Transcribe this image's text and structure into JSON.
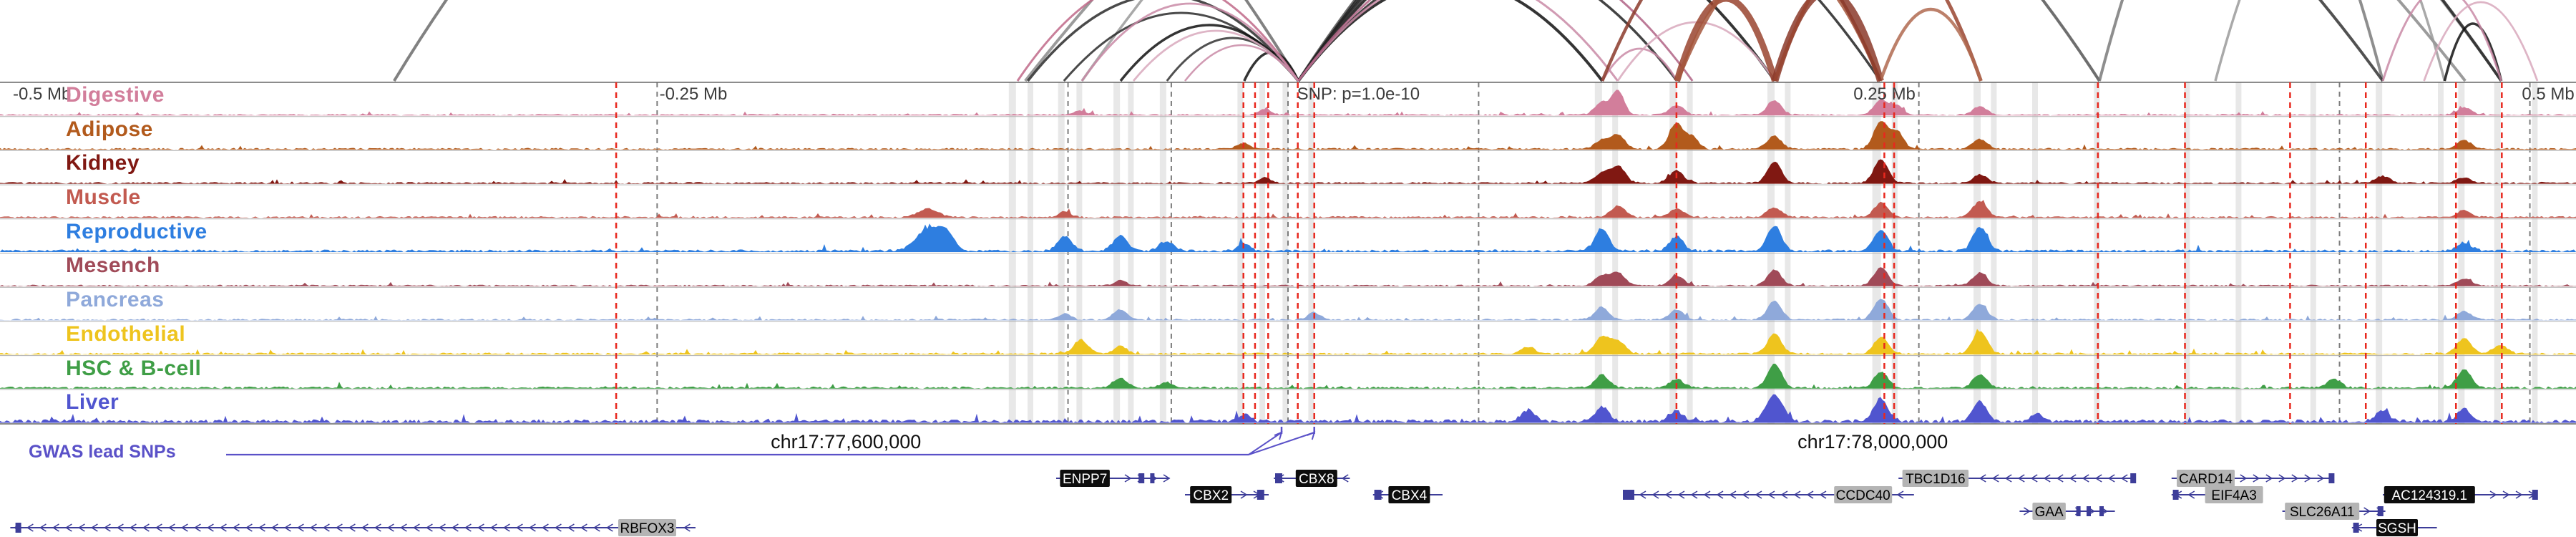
{
  "gwas": {
    "label": "GWAS lead SNPs",
    "color": "#5a51c8",
    "snp_targets_x": [
      0.4975,
      0.5102
    ]
  },
  "chart_data": {
    "type": "area",
    "title": "",
    "description": "Multi-tissue epigenomic signal tracks with chromatin interaction arcs around a GWAS lead SNP on chr17",
    "x_axis": {
      "ticks": [
        "-0.5 Mb",
        "-0.25 Mb",
        "SNP: p=1.0e-10",
        "0.25 Mb",
        "0.5 Mb"
      ],
      "tick_x": [
        0.005,
        0.256,
        0.5035,
        0.7195,
        0.979
      ],
      "coordinates": [
        "chr17:77,600,000",
        "chr17:78,000,000"
      ],
      "coordinate_x": [
        0.3284,
        0.727
      ]
    },
    "snp": {
      "label": "SNP: p=1.0e-10",
      "p_value": "1.0e-10",
      "x": 0.5038
    },
    "series": [
      {
        "name": "Digestive",
        "color": "#d27e9b",
        "noise": 0.7,
        "peaks": [
          [
            0.6218,
            0.45,
            7
          ],
          [
            0.6281,
            0.85,
            6
          ],
          [
            0.6508,
            0.35,
            7
          ],
          [
            0.6888,
            0.5,
            7
          ],
          [
            0.7302,
            0.55,
            7
          ],
          [
            0.7366,
            0.3,
            6
          ],
          [
            0.7686,
            0.3,
            7
          ],
          [
            0.491,
            0.2,
            6
          ],
          [
            0.9566,
            0.25,
            7
          ],
          [
            0.4196,
            0.15,
            6
          ]
        ]
      },
      {
        "name": "Adipose",
        "color": "#b25a1c",
        "noise": 0.8,
        "peaks": [
          [
            0.6218,
            0.3,
            7
          ],
          [
            0.6281,
            0.5,
            7
          ],
          [
            0.6508,
            0.9,
            7
          ],
          [
            0.657,
            0.4,
            6
          ],
          [
            0.6888,
            0.45,
            7
          ],
          [
            0.7302,
            1.0,
            7
          ],
          [
            0.7366,
            0.6,
            6
          ],
          [
            0.7686,
            0.35,
            7
          ],
          [
            0.9566,
            0.3,
            7
          ],
          [
            0.4827,
            0.2,
            6
          ]
        ]
      },
      {
        "name": "Kidney",
        "color": "#801812",
        "noise": 0.8,
        "peaks": [
          [
            0.6218,
            0.35,
            7
          ],
          [
            0.6281,
            0.6,
            7
          ],
          [
            0.6508,
            0.45,
            7
          ],
          [
            0.6888,
            0.75,
            7
          ],
          [
            0.7302,
            0.85,
            7
          ],
          [
            0.7686,
            0.3,
            7
          ],
          [
            0.9248,
            0.25,
            7
          ],
          [
            0.491,
            0.2,
            6
          ],
          [
            0.9566,
            0.2,
            7
          ]
        ]
      },
      {
        "name": "Muscle",
        "color": "#c25a50",
        "noise": 0.8,
        "peaks": [
          [
            0.3603,
            0.3,
            10
          ],
          [
            0.6281,
            0.4,
            7
          ],
          [
            0.6508,
            0.3,
            7
          ],
          [
            0.6888,
            0.35,
            7
          ],
          [
            0.7302,
            0.5,
            7
          ],
          [
            0.7686,
            0.55,
            7
          ],
          [
            0.9566,
            0.25,
            7
          ],
          [
            0.4133,
            0.2,
            6
          ]
        ]
      },
      {
        "name": "Reproductive",
        "color": "#2e7ee0",
        "noise": 1.2,
        "peaks": [
          [
            0.3603,
            0.75,
            12
          ],
          [
            0.3672,
            0.55,
            8
          ],
          [
            0.4133,
            0.5,
            7
          ],
          [
            0.4349,
            0.55,
            7
          ],
          [
            0.4528,
            0.35,
            7
          ],
          [
            0.6218,
            0.8,
            7
          ],
          [
            0.6508,
            0.5,
            7
          ],
          [
            0.6888,
            0.9,
            7
          ],
          [
            0.7302,
            0.75,
            7
          ],
          [
            0.7686,
            0.85,
            7
          ],
          [
            0.4827,
            0.25,
            6
          ],
          [
            0.9566,
            0.3,
            7
          ]
        ]
      },
      {
        "name": "Mesench",
        "color": "#a04a58",
        "noise": 0.7,
        "peaks": [
          [
            0.6218,
            0.35,
            7
          ],
          [
            0.6281,
            0.45,
            7
          ],
          [
            0.6508,
            0.35,
            7
          ],
          [
            0.6888,
            0.55,
            7
          ],
          [
            0.7302,
            0.65,
            7
          ],
          [
            0.7686,
            0.45,
            7
          ],
          [
            0.9566,
            0.25,
            7
          ],
          [
            0.4349,
            0.2,
            6
          ]
        ]
      },
      {
        "name": "Pancreas",
        "color": "#8fa9da",
        "noise": 0.8,
        "peaks": [
          [
            0.4349,
            0.35,
            7
          ],
          [
            0.6218,
            0.45,
            7
          ],
          [
            0.6508,
            0.35,
            7
          ],
          [
            0.6888,
            0.65,
            7
          ],
          [
            0.7302,
            0.75,
            7
          ],
          [
            0.7686,
            0.55,
            7
          ],
          [
            0.5102,
            0.25,
            6
          ],
          [
            0.9566,
            0.3,
            7
          ],
          [
            0.4133,
            0.2,
            6
          ]
        ]
      },
      {
        "name": "Endothelial",
        "color": "#eec41e",
        "noise": 0.9,
        "peaks": [
          [
            0.4196,
            0.5,
            7
          ],
          [
            0.6218,
            0.6,
            7
          ],
          [
            0.6281,
            0.45,
            7
          ],
          [
            0.6888,
            0.7,
            7
          ],
          [
            0.7302,
            0.6,
            7
          ],
          [
            0.7686,
            0.8,
            7
          ],
          [
            0.9566,
            0.55,
            7
          ],
          [
            0.5931,
            0.25,
            7
          ],
          [
            0.4349,
            0.3,
            6
          ],
          [
            0.9706,
            0.3,
            7
          ]
        ]
      },
      {
        "name": "HSC & B-cell",
        "color": "#3f9e46",
        "noise": 1.0,
        "peaks": [
          [
            0.4349,
            0.35,
            7
          ],
          [
            0.6218,
            0.45,
            7
          ],
          [
            0.6888,
            0.85,
            7
          ],
          [
            0.7302,
            0.55,
            7
          ],
          [
            0.7686,
            0.45,
            7
          ],
          [
            0.906,
            0.3,
            7
          ],
          [
            0.9566,
            0.65,
            7
          ],
          [
            0.4528,
            0.2,
            6
          ],
          [
            0.6508,
            0.3,
            7
          ]
        ]
      },
      {
        "name": "Liver",
        "color": "#5055cf",
        "noise": 1.6,
        "peaks": [
          [
            0.5931,
            0.4,
            7
          ],
          [
            0.6218,
            0.5,
            7
          ],
          [
            0.6888,
            0.95,
            8
          ],
          [
            0.7302,
            0.8,
            7
          ],
          [
            0.7686,
            0.7,
            7
          ],
          [
            0.9248,
            0.35,
            7
          ],
          [
            0.9566,
            0.45,
            7
          ],
          [
            0.4827,
            0.25,
            6
          ],
          [
            0.6508,
            0.35,
            7
          ],
          [
            0.7909,
            0.3,
            6
          ]
        ]
      }
    ],
    "overlays": {
      "red_lines": [
        0.2392,
        0.4827,
        0.4872,
        0.4923,
        0.5038,
        0.5102,
        0.6508,
        0.7315,
        0.7353,
        0.8144,
        0.8482,
        0.889,
        0.9184,
        0.9534,
        0.9712
      ],
      "gray_lines": [
        0.2551,
        0.4146,
        0.4547,
        0.5,
        0.574,
        0.7449,
        0.9082,
        0.9821
      ],
      "bands": [
        [
          0.393,
          10
        ],
        [
          0.4,
          8
        ],
        [
          0.412,
          9
        ],
        [
          0.419,
          8
        ],
        [
          0.4335,
          9
        ],
        [
          0.439,
          8
        ],
        [
          0.4515,
          9
        ],
        [
          0.4815,
          8
        ],
        [
          0.49,
          8
        ],
        [
          0.499,
          8
        ],
        [
          0.509,
          8
        ],
        [
          0.6205,
          10
        ],
        [
          0.627,
          8
        ],
        [
          0.6495,
          10
        ],
        [
          0.656,
          8
        ],
        [
          0.6875,
          10
        ],
        [
          0.694,
          8
        ],
        [
          0.7285,
          12
        ],
        [
          0.7355,
          8
        ],
        [
          0.7675,
          10
        ],
        [
          0.774,
          8
        ],
        [
          0.79,
          8
        ],
        [
          0.814,
          8
        ],
        [
          0.849,
          8
        ],
        [
          0.869,
          8
        ],
        [
          0.898,
          8
        ],
        [
          0.9235,
          9
        ],
        [
          0.9475,
          8
        ],
        [
          0.9555,
          9
        ],
        [
          0.9695,
          9
        ],
        [
          0.984,
          8
        ]
      ]
    },
    "arcs": [
      [
        0.153,
        0.504,
        520,
        "#6b6b6b",
        4
      ],
      [
        0.398,
        0.957,
        640,
        "#8a8a8a",
        4
      ],
      [
        0.42,
        0.971,
        700,
        "#9a9a9a",
        3.5
      ],
      [
        0.504,
        0.815,
        430,
        "#555555",
        4
      ],
      [
        0.86,
        0.949,
        300,
        "#9a9a9a",
        3.5
      ],
      [
        0.815,
        0.925,
        380,
        "#7a7a7a",
        4
      ],
      [
        0.399,
        0.504,
        120,
        "#2a2a2a",
        3.5
      ],
      [
        0.413,
        0.504,
        95,
        "#2a2a2a",
        3
      ],
      [
        0.435,
        0.504,
        78,
        "#111111",
        3.5
      ],
      [
        0.453,
        0.504,
        60,
        "#333333",
        3
      ],
      [
        0.483,
        0.504,
        40,
        "#111111",
        3.5
      ],
      [
        0.504,
        0.622,
        140,
        "#111111",
        4
      ],
      [
        0.504,
        0.651,
        175,
        "#222222",
        3.5
      ],
      [
        0.504,
        0.689,
        235,
        "#111111",
        4
      ],
      [
        0.504,
        0.73,
        300,
        "#222222",
        3.5
      ],
      [
        0.504,
        0.925,
        520,
        "#333333",
        4
      ],
      [
        0.504,
        0.971,
        610,
        "#222222",
        4
      ],
      [
        0.949,
        0.971,
        80,
        "#111111",
        3.5
      ],
      [
        0.395,
        0.504,
        145,
        "#c06888",
        3
      ],
      [
        0.42,
        0.504,
        108,
        "#c98aa6",
        2.8
      ],
      [
        0.44,
        0.504,
        70,
        "#d8a8bc",
        2.8
      ],
      [
        0.46,
        0.504,
        50,
        "#c98aa6",
        2.6
      ],
      [
        0.504,
        0.628,
        150,
        "#c98aa6",
        3
      ],
      [
        0.504,
        0.657,
        190,
        "#b06385",
        3
      ],
      [
        0.622,
        0.651,
        45,
        "#c98aa6",
        2.8
      ],
      [
        0.628,
        0.689,
        82,
        "#d8a8bc",
        2.8
      ],
      [
        0.651,
        0.689,
        115,
        "#99442f",
        9
      ],
      [
        0.689,
        0.73,
        125,
        "#8b3a2a",
        10
      ],
      [
        0.651,
        0.73,
        175,
        "#a5563c",
        6
      ],
      [
        0.689,
        0.769,
        205,
        "#99442f",
        5
      ],
      [
        0.73,
        0.769,
        100,
        "#b06a50",
        4.5
      ],
      [
        0.622,
        0.73,
        235,
        "#8b3a2a",
        4.5
      ],
      [
        0.925,
        0.971,
        130,
        "#c98aa6",
        3
      ],
      [
        0.941,
        0.985,
        110,
        "#d8a8bc",
        2.8
      ]
    ],
    "genes": [
      {
        "name": "RBFOX3",
        "row": 3,
        "x1": 0.004,
        "x2": 0.27,
        "strand": "-",
        "label_x": 0.24,
        "style": "gray",
        "exons": [
          [
            0.006,
            8
          ]
        ]
      },
      {
        "name": "ENPP7",
        "row": 0,
        "x1": 0.41,
        "x2": 0.454,
        "strand": "+",
        "label_x": 0.4115,
        "style": "black",
        "exons": [
          [
            0.442,
            8
          ],
          [
            0.4465,
            6
          ]
        ]
      },
      {
        "name": "CBX2",
        "row": 1,
        "x1": 0.46,
        "x2": 0.4925,
        "strand": "+",
        "label_x": 0.462,
        "style": "black",
        "exons": [
          [
            0.488,
            10
          ]
        ]
      },
      {
        "name": "CBX8",
        "row": 0,
        "x1": 0.4945,
        "x2": 0.524,
        "strand": "-",
        "label_x": 0.503,
        "style": "black",
        "exons": [
          [
            0.495,
            10
          ]
        ]
      },
      {
        "name": "CBX4",
        "row": 1,
        "x1": 0.533,
        "x2": 0.56,
        "strand": "-",
        "label_x": 0.539,
        "style": "black",
        "exons": [
          [
            0.5335,
            10
          ]
        ]
      },
      {
        "name": "CCDC40",
        "row": 1,
        "x1": 0.63,
        "x2": 0.743,
        "strand": "-",
        "label_x": 0.712,
        "style": "gray",
        "exons": [
          [
            0.63,
            16
          ]
        ]
      },
      {
        "name": "TBC1D16",
        "row": 0,
        "x1": 0.737,
        "x2": 0.828,
        "strand": "-",
        "label_x": 0.7385,
        "style": "gray",
        "exons": [
          [
            0.827,
            8
          ]
        ]
      },
      {
        "name": "GAA",
        "row": 2,
        "x1": 0.784,
        "x2": 0.821,
        "strand": "+",
        "label_x": 0.789,
        "style": "gray",
        "exons": [
          [
            0.806,
            6
          ],
          [
            0.81,
            6
          ],
          [
            0.815,
            6
          ]
        ]
      },
      {
        "name": "CARD14",
        "row": 0,
        "x1": 0.843,
        "x2": 0.906,
        "strand": "+",
        "label_x": 0.845,
        "style": "gray",
        "exons": [
          [
            0.904,
            8
          ]
        ]
      },
      {
        "name": "EIF4A3",
        "row": 1,
        "x1": 0.843,
        "x2": 0.858,
        "strand": "-",
        "label_x": 0.856,
        "style": "gray",
        "exons": [
          [
            0.8435,
            8
          ]
        ]
      },
      {
        "name": "SLC26A11",
        "row": 2,
        "x1": 0.886,
        "x2": 0.926,
        "strand": "+",
        "label_x": 0.887,
        "style": "gray",
        "exons": [
          [
            0.923,
            8
          ]
        ]
      },
      {
        "name": "AC124319.1",
        "row": 1,
        "x1": 0.925,
        "x2": 0.985,
        "strand": "+",
        "label_x": 0.9255,
        "style": "black",
        "exons": [
          [
            0.983,
            8
          ]
        ]
      },
      {
        "name": "SGSH",
        "row": 3,
        "x1": 0.913,
        "x2": 0.946,
        "strand": "-",
        "label_x": 0.9225,
        "style": "black",
        "exons": [
          [
            0.9135,
            8
          ]
        ]
      }
    ]
  }
}
